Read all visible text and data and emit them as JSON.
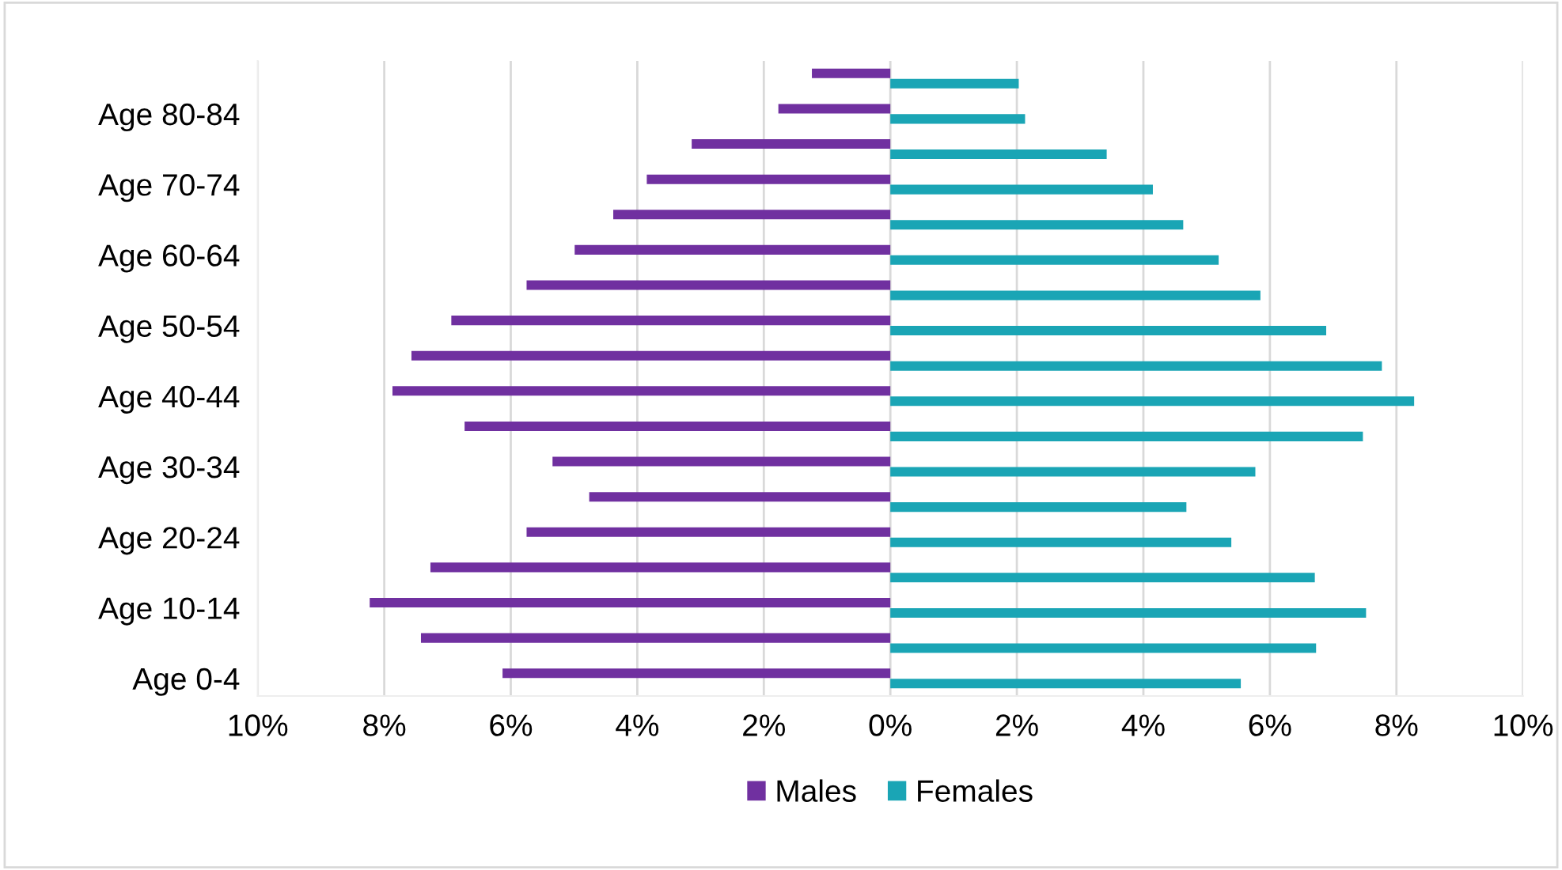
{
  "chart_data": {
    "type": "bar",
    "orientation": "horizontal",
    "categories": [
      null,
      "Age 80-84",
      null,
      "Age 70-74",
      null,
      "Age 60-64",
      null,
      "Age 50-54",
      null,
      "Age 40-44",
      null,
      "Age 30-34",
      null,
      "Age 20-24",
      null,
      "Age 10-14",
      null,
      "Age 0-4"
    ],
    "series": [
      {
        "name": "Males",
        "color": "#7030a0",
        "values": [
          -1.24,
          -1.77,
          -3.14,
          -3.85,
          -4.38,
          -4.99,
          -5.75,
          -6.94,
          -7.57,
          -7.87,
          -6.73,
          -5.34,
          -4.76,
          -5.75,
          -7.27,
          -8.23,
          -7.42,
          -6.13
        ]
      },
      {
        "name": "Females",
        "color": "#1aa5b5",
        "values": [
          2.03,
          2.13,
          3.42,
          4.15,
          4.63,
          5.19,
          5.85,
          6.89,
          7.77,
          8.28,
          7.47,
          5.77,
          4.68,
          5.39,
          6.71,
          7.52,
          6.73,
          5.54
        ]
      }
    ],
    "xlim": [
      -10,
      10
    ],
    "xticks": [
      {
        "value": -10,
        "label": "10%"
      },
      {
        "value": -8,
        "label": "8%"
      },
      {
        "value": -6,
        "label": "6%"
      },
      {
        "value": -4,
        "label": "4%"
      },
      {
        "value": -2,
        "label": "2%"
      },
      {
        "value": 0,
        "label": "0%"
      },
      {
        "value": 2,
        "label": "2%"
      },
      {
        "value": 4,
        "label": "4%"
      },
      {
        "value": 6,
        "label": "6%"
      },
      {
        "value": 8,
        "label": "8%"
      },
      {
        "value": 10,
        "label": "10%"
      }
    ],
    "grid": "x",
    "legend": "bottom"
  }
}
